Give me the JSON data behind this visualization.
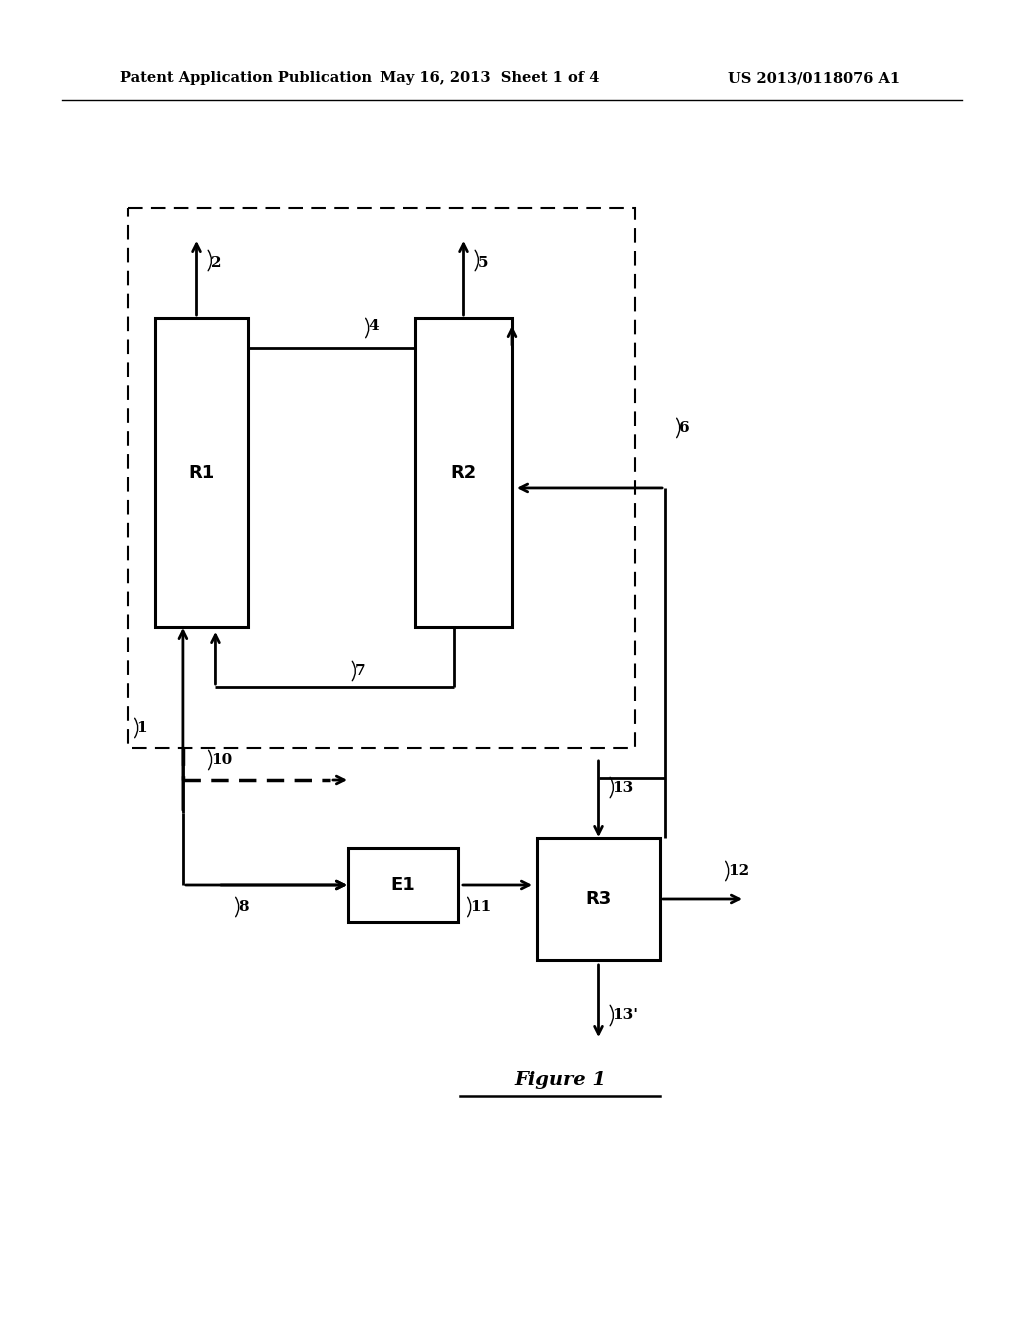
{
  "header_left": "Patent Application Publication",
  "header_center": "May 16, 2013  Sheet 1 of 4",
  "header_right": "US 2013/0118076 A1",
  "figure_label": "Figure 1",
  "bg_color": "#ffffff",
  "text_color": "#000000"
}
